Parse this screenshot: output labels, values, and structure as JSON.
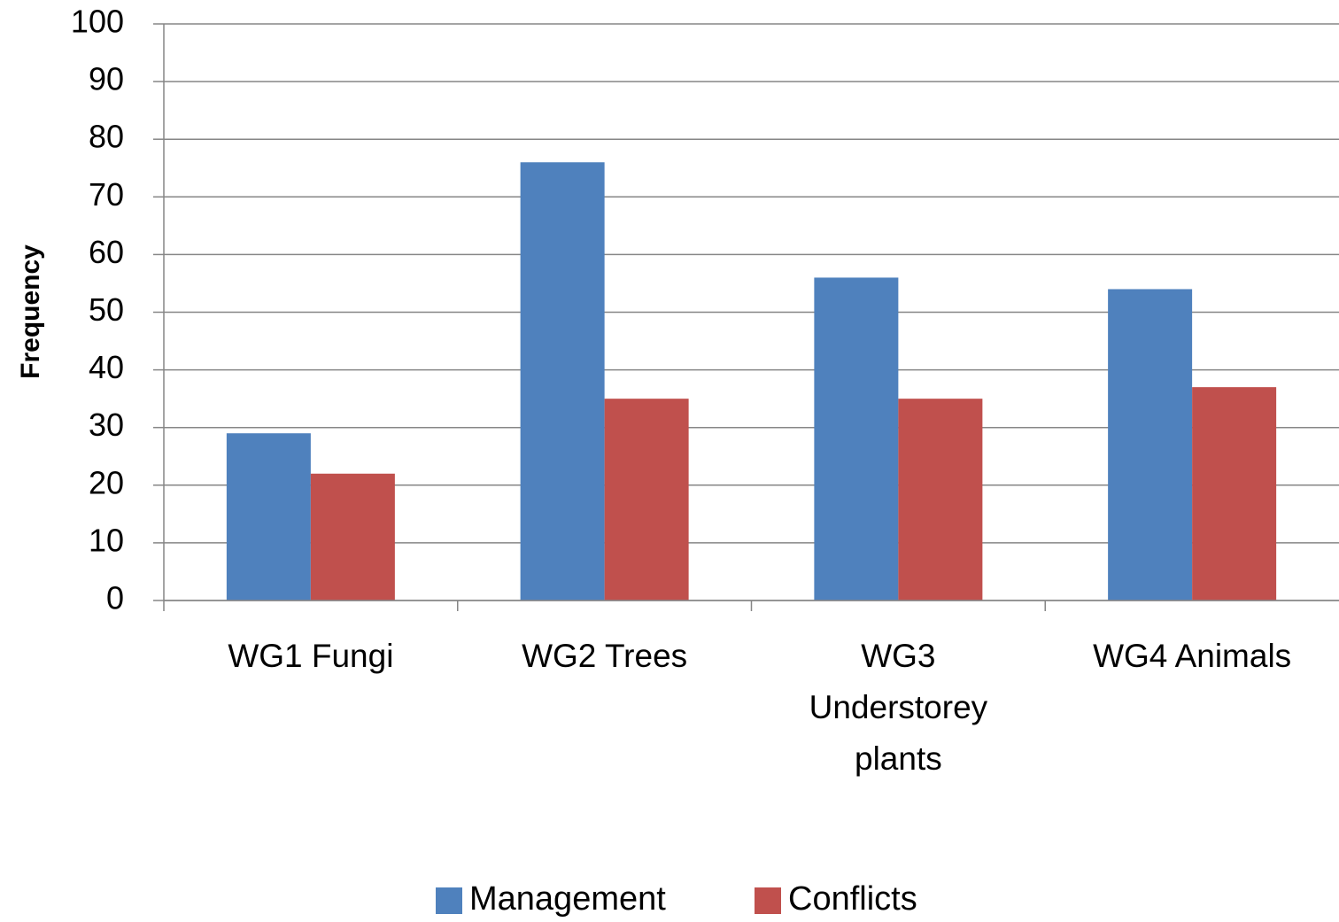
{
  "chart_data": {
    "type": "bar",
    "y_label": "Frequency",
    "categories": [
      "WG1 Fungi",
      "WG2 Trees",
      "WG3 Understorey plants",
      "WG4 Animals"
    ],
    "series": [
      {
        "name": "Management",
        "color": "#4f81bd",
        "values": [
          29,
          76,
          56,
          54
        ]
      },
      {
        "name": "Conflicts",
        "color": "#c0504d",
        "values": [
          22,
          35,
          35,
          37
        ]
      }
    ],
    "ylim": [
      0,
      100
    ],
    "yticks": [
      0,
      10,
      20,
      30,
      40,
      50,
      60,
      70,
      80,
      90,
      100
    ],
    "grid": true,
    "legend": "bottom"
  }
}
